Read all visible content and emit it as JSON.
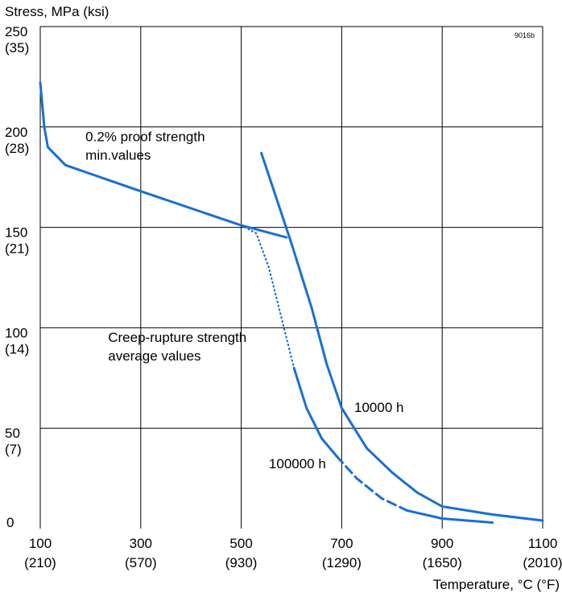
{
  "chart_data": {
    "type": "line",
    "ylabel": "Stress, MPa (ksi)",
    "xlabel": "Temperature, °C (°F)",
    "code": "9016b",
    "xlim": [
      100,
      1100
    ],
    "ylim": [
      0,
      250
    ],
    "grid": true,
    "x_ticks": [
      {
        "value": 100,
        "label": "100",
        "sub": "(210)"
      },
      {
        "value": 300,
        "label": "300",
        "sub": "(570)"
      },
      {
        "value": 500,
        "label": "500",
        "sub": "(930)"
      },
      {
        "value": 700,
        "label": "700",
        "sub": "(1290)"
      },
      {
        "value": 900,
        "label": "900",
        "sub": "(1650)"
      },
      {
        "value": 1100,
        "label": "1100",
        "sub": "(2010)"
      }
    ],
    "y_ticks": [
      {
        "value": 250,
        "label": "250",
        "sub": "(35)"
      },
      {
        "value": 200,
        "label": "200",
        "sub": "(28)"
      },
      {
        "value": 150,
        "label": "150",
        "sub": "(21)"
      },
      {
        "value": 100,
        "label": "100",
        "sub": "(14)"
      },
      {
        "value": 50,
        "label": "50",
        "sub": "(7)"
      },
      {
        "value": 0,
        "label": "0",
        "sub": ""
      }
    ],
    "annotations": [
      {
        "lines": [
          "0.2% proof strength",
          "min.values"
        ],
        "x": 190,
        "y": 193
      },
      {
        "lines": [
          "Creep-rupture strength",
          "average values"
        ],
        "x": 235,
        "y": 93
      },
      {
        "lines": [
          "10000 h"
        ],
        "x": 725,
        "y": 58
      },
      {
        "lines": [
          "100000 h"
        ],
        "x": 555,
        "y": 30
      }
    ],
    "series": [
      {
        "style": "solid",
        "points": [
          [
            100,
            222
          ],
          [
            108,
            200
          ],
          [
            115,
            190
          ],
          [
            150,
            181
          ],
          [
            300,
            168
          ],
          [
            500,
            151
          ],
          [
            590,
            145
          ]
        ]
      },
      {
        "style": "solid",
        "points": [
          [
            540,
            187
          ],
          [
            600,
            142
          ],
          [
            640,
            110
          ],
          [
            670,
            82
          ],
          [
            700,
            60
          ],
          [
            750,
            40
          ],
          [
            800,
            28
          ],
          [
            850,
            18
          ],
          [
            900,
            11
          ],
          [
            1000,
            7
          ],
          [
            1100,
            4
          ]
        ]
      },
      {
        "style": "dotted",
        "points": [
          [
            500,
            151
          ],
          [
            530,
            147
          ],
          [
            555,
            130
          ],
          [
            575,
            110
          ],
          [
            590,
            95
          ],
          [
            605,
            80
          ]
        ]
      },
      {
        "style": "solid",
        "points": [
          [
            605,
            80
          ],
          [
            630,
            60
          ],
          [
            660,
            45
          ],
          [
            690,
            36
          ]
        ]
      },
      {
        "style": "dashed",
        "points": [
          [
            690,
            36
          ],
          [
            730,
            25
          ],
          [
            780,
            15
          ],
          [
            830,
            9
          ]
        ]
      },
      {
        "style": "solid",
        "points": [
          [
            830,
            9
          ],
          [
            900,
            5
          ],
          [
            1000,
            3
          ]
        ]
      }
    ],
    "line_color": "#1a6fd1",
    "grid_color": "#000000"
  }
}
